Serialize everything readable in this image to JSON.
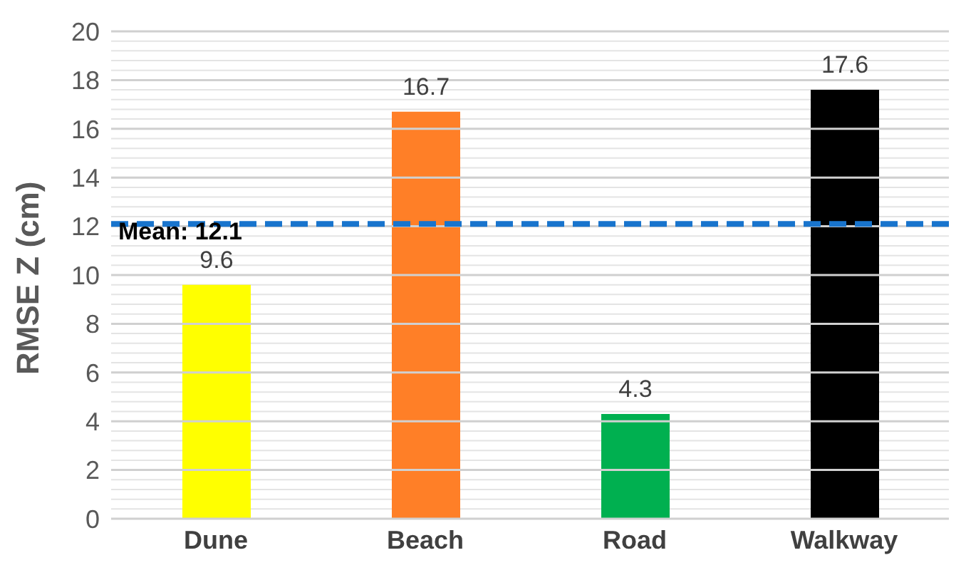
{
  "chart_data": {
    "type": "bar",
    "ylabel": "RMSE Z (cm)",
    "categories": [
      "Dune",
      "Beach",
      "Road",
      "Walkway"
    ],
    "values": [
      9.6,
      16.7,
      4.3,
      17.6
    ],
    "colors": [
      "#ffff00",
      "#ff7f27",
      "#00b050",
      "#000000"
    ],
    "ylim": [
      0,
      20
    ],
    "yticks": [
      0,
      {
        "value": 0.4,
        "label": null
      },
      {
        "value": 0.8,
        "label": null
      },
      {
        "value": 1.2,
        "label": null
      },
      {
        "value": 1.6,
        "label": null
      },
      2,
      {
        "value": 2.4,
        "label": null
      },
      {
        "value": 2.8,
        "label": null
      },
      {
        "value": 3.2,
        "label": null
      },
      {
        "value": 3.6,
        "label": null
      },
      4,
      {
        "value": 4.4,
        "label": null
      },
      {
        "value": 4.8,
        "label": null
      },
      {
        "value": 5.2,
        "label": null
      },
      {
        "value": 5.6,
        "label": null
      },
      6,
      {
        "value": 6.4,
        "label": null
      },
      {
        "value": 6.8,
        "label": null
      },
      {
        "value": 7.2,
        "label": null
      },
      {
        "value": 7.6,
        "label": null
      },
      8,
      {
        "value": 8.4,
        "label": null
      },
      {
        "value": 8.8,
        "label": null
      },
      {
        "value": 9.2,
        "label": null
      },
      {
        "value": 9.6,
        "label": null
      },
      10,
      {
        "value": 10.4,
        "label": null
      },
      {
        "value": 10.8,
        "label": null
      },
      {
        "value": 11.2,
        "label": null
      },
      {
        "value": 11.6,
        "label": null
      },
      12,
      {
        "value": 12.4,
        "label": null
      },
      {
        "value": 12.8,
        "label": null
      },
      {
        "value": 13.2,
        "label": null
      },
      {
        "value": 13.6,
        "label": null
      },
      14,
      {
        "value": 14.4,
        "label": null
      },
      {
        "value": 14.8,
        "label": null
      },
      {
        "value": 15.2,
        "label": null
      },
      {
        "value": 15.6,
        "label": null
      },
      16,
      {
        "value": 16.4,
        "label": null
      },
      {
        "value": 16.8,
        "label": null
      },
      {
        "value": 17.2,
        "label": null
      },
      {
        "value": 17.6,
        "label": null
      },
      18,
      {
        "value": 18.4,
        "label": null
      },
      {
        "value": 18.8,
        "label": null
      },
      {
        "value": 19.2,
        "label": null
      },
      {
        "value": 19.6,
        "label": null
      },
      20
    ],
    "grid": "y",
    "data_labels": true,
    "ref_lines": [
      {
        "axis": "y",
        "value": 12.1,
        "label": "Mean: 12.1",
        "color": "#1874cd",
        "line_style": "dashed"
      }
    ]
  }
}
